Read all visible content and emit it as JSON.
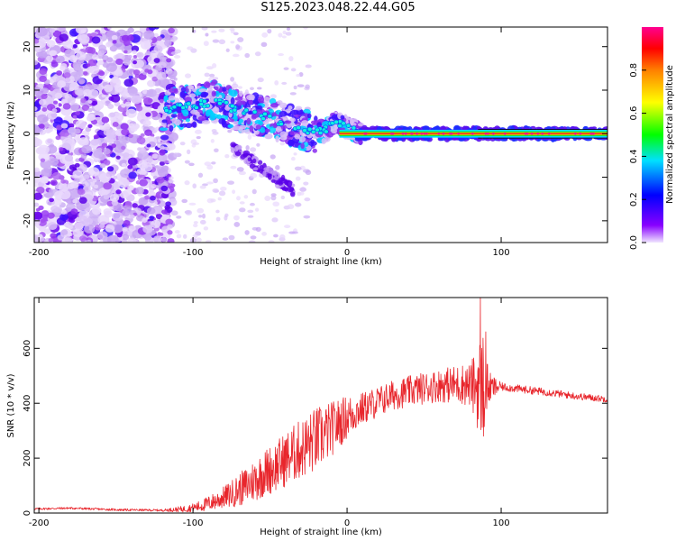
{
  "title": "S125.2023.048.22.44.G05",
  "chart_data": [
    {
      "type": "heatmap",
      "xlabel": "Height of straight line (km)",
      "ylabel": "Frequency (Hz)",
      "xlim": [
        -203,
        169
      ],
      "ylim": [
        -25,
        24.5
      ],
      "xticks": [
        -200,
        -100,
        0,
        100
      ],
      "yticks": [
        -20,
        -10,
        0,
        10,
        20
      ],
      "colorbar": {
        "label": "Normalized spectral amplitude",
        "range": [
          0,
          1
        ],
        "ticks": [
          0.0,
          0.2,
          0.4,
          0.6,
          0.8
        ],
        "colormap": [
          "#f0e6ff",
          "#8800ff",
          "#0000ff",
          "#00e0ff",
          "#00ff00",
          "#ffff00",
          "#ff8000",
          "#ff0000",
          "#ff0090"
        ]
      },
      "ridge": {
        "description_points": [
          {
            "x": -118,
            "y": 5.5
          },
          {
            "x": -100,
            "y": 6.5
          },
          {
            "x": -85,
            "y": 7.5
          },
          {
            "x": -70,
            "y": 5
          },
          {
            "x": -55,
            "y": 4
          },
          {
            "x": -40,
            "y": 2.5
          },
          {
            "x": -25,
            "y": 0.5
          },
          {
            "x": -15,
            "y": 0.5
          },
          {
            "x": -8,
            "y": 2.5
          },
          {
            "x": 0,
            "y": 1.5
          },
          {
            "x": 10,
            "y": 0
          },
          {
            "x": 169,
            "y": 0
          }
        ]
      }
    },
    {
      "type": "line",
      "xlabel": "Height of straight line (km)",
      "ylabel": "SNR (10 * v/v)",
      "xlim": [
        -203,
        169
      ],
      "ylim": [
        0,
        785
      ],
      "xticks": [
        -200,
        -100,
        0,
        100
      ],
      "yticks": [
        0,
        200,
        400,
        600
      ],
      "series": [
        {
          "color": "#e8262c",
          "anchors": [
            [
              -203,
              15
            ],
            [
              -180,
              18
            ],
            [
              -150,
              12
            ],
            [
              -120,
              10
            ],
            [
              -105,
              15
            ],
            [
              -95,
              25
            ],
            [
              -85,
              45
            ],
            [
              -75,
              70
            ],
            [
              -65,
              100
            ],
            [
              -55,
              140
            ],
            [
              -45,
              175
            ],
            [
              -35,
              215
            ],
            [
              -25,
              250
            ],
            [
              -15,
              285
            ],
            [
              -8,
              315
            ],
            [
              0,
              350
            ],
            [
              8,
              375
            ],
            [
              18,
              400
            ],
            [
              30,
              430
            ],
            [
              45,
              450
            ],
            [
              60,
              465
            ],
            [
              75,
              470
            ],
            [
              85,
              460
            ],
            [
              88,
              470
            ],
            [
              92,
              455
            ],
            [
              100,
              460
            ],
            [
              115,
              450
            ],
            [
              130,
              440
            ],
            [
              150,
              425
            ],
            [
              169,
              415
            ]
          ],
          "noise": [
            [
              -203,
              4
            ],
            [
              -120,
              4
            ],
            [
              -100,
              15
            ],
            [
              -80,
              40
            ],
            [
              -60,
              80
            ],
            [
              -40,
              100
            ],
            [
              -20,
              120
            ],
            [
              -5,
              90
            ],
            [
              10,
              60
            ],
            [
              30,
              55
            ],
            [
              60,
              60
            ],
            [
              80,
              80
            ],
            [
              88,
              210
            ],
            [
              92,
              60
            ],
            [
              100,
              15
            ],
            [
              169,
              12
            ]
          ],
          "peaks": [
            {
              "x": 85,
              "y": 530
            },
            {
              "x": 86.5,
              "y": 785
            },
            {
              "x": 88.5,
              "y": 280
            },
            {
              "x": 90,
              "y": 660
            }
          ]
        }
      ]
    }
  ]
}
